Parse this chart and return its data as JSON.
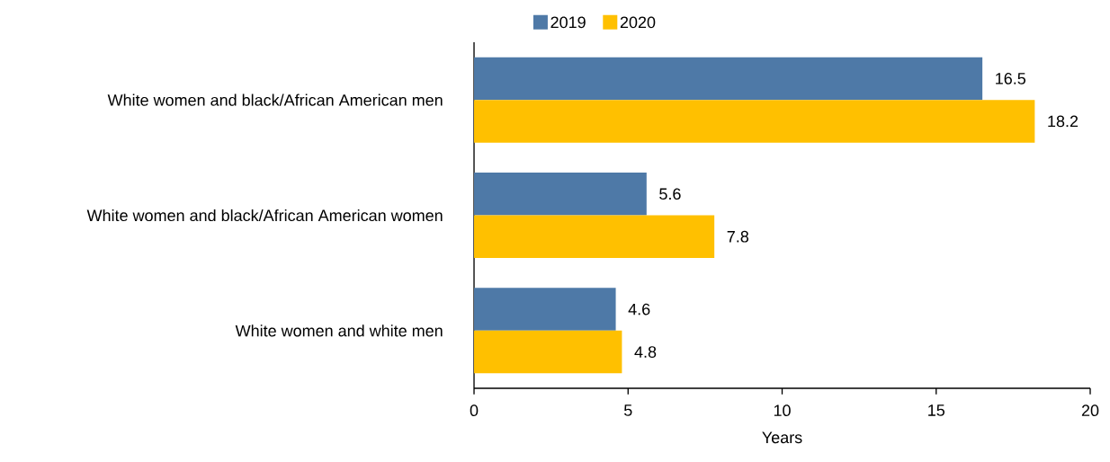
{
  "chart_data": {
    "type": "bar",
    "orientation": "horizontal",
    "xlabel": "Years",
    "categories": [
      "White women and black/African American men",
      "White women and black/African American women",
      "White women and white men"
    ],
    "series": [
      {
        "name": "2019",
        "color": "#4e79a7",
        "values": [
          16.5,
          5.6,
          4.6
        ]
      },
      {
        "name": "2020",
        "color": "#ffc000",
        "values": [
          18.2,
          7.8,
          4.8
        ]
      }
    ],
    "xlim": [
      0,
      20
    ],
    "xticks": [
      0,
      5,
      10,
      15,
      20
    ],
    "data_labels": true,
    "legend": "top",
    "grid": false
  }
}
